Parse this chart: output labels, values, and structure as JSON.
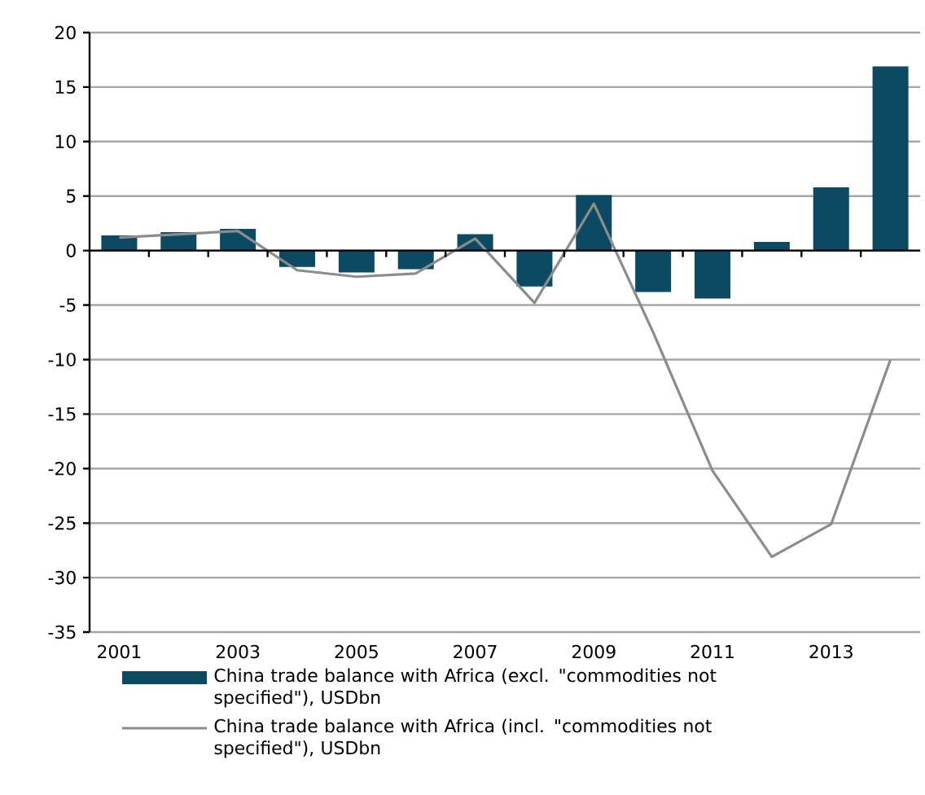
{
  "chart_data": {
    "type": "bar",
    "categories": [
      "2001",
      null,
      "2003",
      null,
      "2005",
      null,
      "2007",
      null,
      "2009",
      null,
      "2011",
      null,
      "2013",
      null
    ],
    "series": [
      {
        "name": "China trade balance with Africa (excl. \"commodities not specified\"), USDbn",
        "color": "#0b4a62",
        "values": [
          1.4,
          1.7,
          2.0,
          -1.5,
          -2.0,
          -1.7,
          1.5,
          -3.3,
          5.1,
          -3.8,
          -4.4,
          0.8,
          5.8,
          16.9
        ]
      },
      {
        "name": "China trade balance with Africa (incl. \"commodities not specified\"), USDbn",
        "color": "#8c8c8c",
        "type": "line",
        "values": [
          1.2,
          1.5,
          1.8,
          -1.8,
          -2.4,
          -2.1,
          1.1,
          -4.8,
          4.3,
          -7.5,
          -20.2,
          -28.1,
          -25.1,
          -10.0
        ]
      }
    ],
    "ylim": [
      -35,
      20
    ],
    "yticks": [
      -35,
      -30,
      -25,
      -20,
      -15,
      -10,
      -5,
      0,
      5,
      10,
      15,
      20
    ],
    "grid": "y",
    "legend": "bottom",
    "marker": "none"
  }
}
